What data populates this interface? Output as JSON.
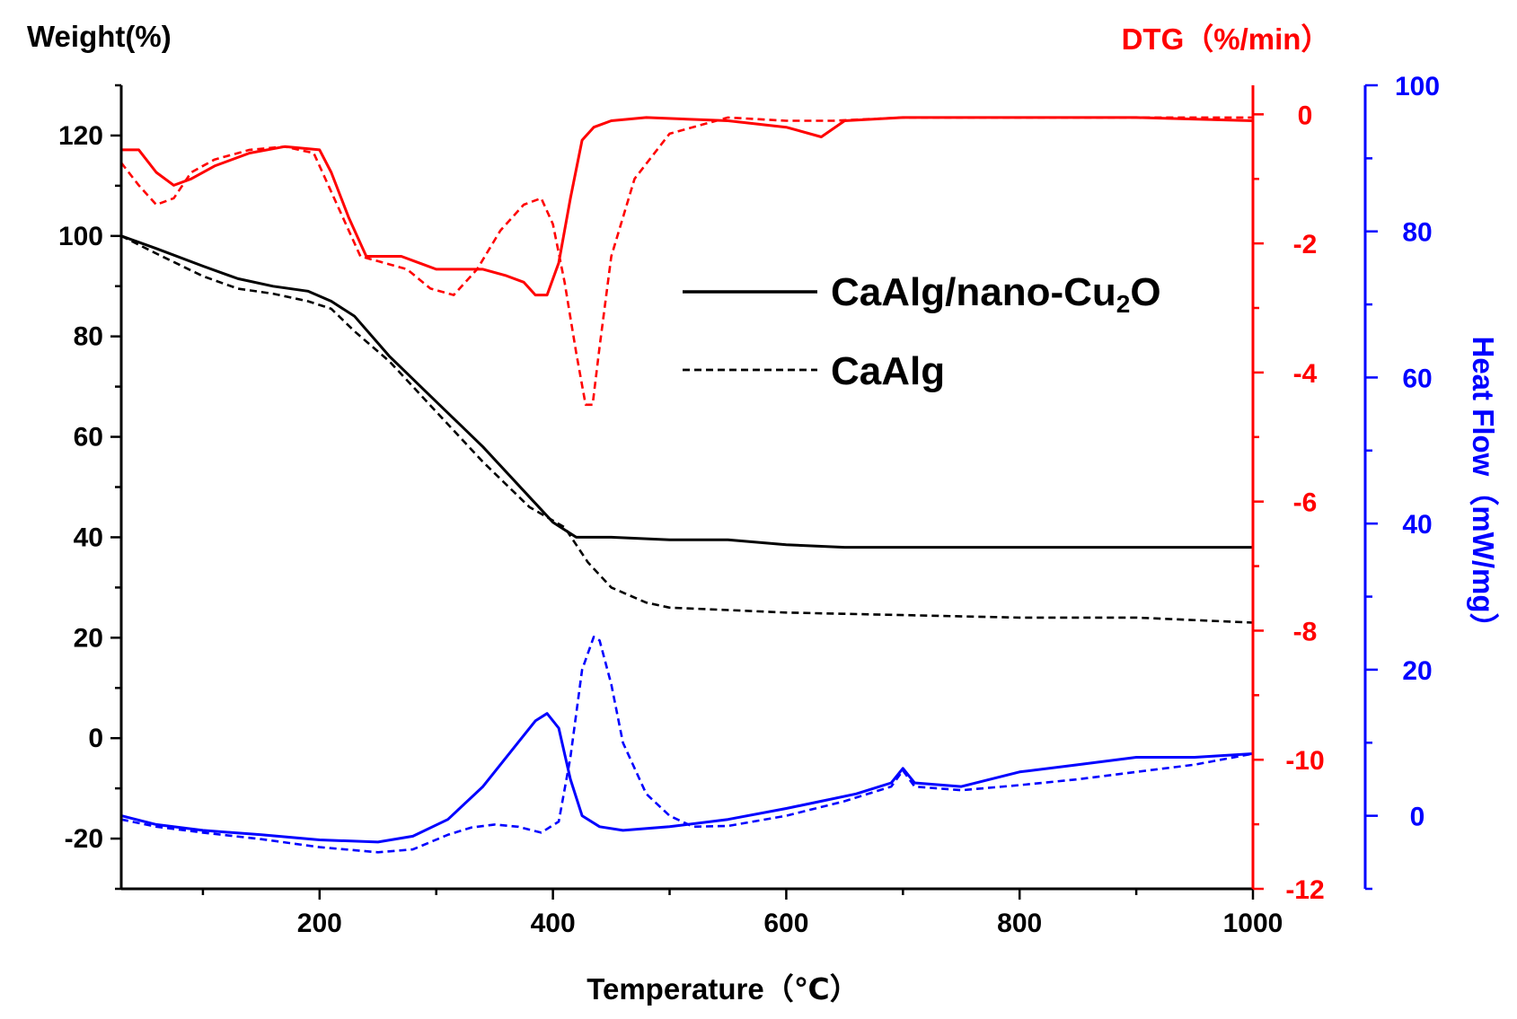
{
  "chart_data": {
    "type": "line",
    "title": "",
    "xlabel": "Temperature（℃）",
    "xlim": [
      30,
      1000
    ],
    "x_ticks": [
      200,
      400,
      600,
      800,
      1000
    ],
    "axes": {
      "weight": {
        "label": "Weight(%)",
        "ylim": [
          -30,
          130
        ],
        "ticks": [
          -20,
          0,
          20,
          40,
          60,
          80,
          100,
          120
        ],
        "color": "#000000"
      },
      "dtg": {
        "label": "DTG（%/min）",
        "ylim": [
          -12,
          0.45
        ],
        "ticks": [
          0,
          -2,
          -4,
          -6,
          -8,
          -10,
          -12
        ],
        "color": "#ff0000"
      },
      "heat": {
        "label": "Heat Flow（mW/mg）",
        "ylim": [
          -10,
          100
        ],
        "ticks": [
          0,
          20,
          40,
          60,
          80,
          100
        ],
        "color": "#0000ff"
      }
    },
    "legend": [
      {
        "label": "CaAlg/nano-Cu",
        "sub": "2",
        "suffix": "O",
        "style": "solid"
      },
      {
        "label": "CaAlg",
        "style": "dashed"
      }
    ],
    "series": [
      {
        "name": "CaAlg/nano-Cu2O weight",
        "axis": "weight",
        "style": "solid",
        "color": "#000000",
        "x": [
          30,
          60,
          100,
          130,
          160,
          190,
          210,
          230,
          260,
          300,
          340,
          380,
          400,
          420,
          450,
          500,
          550,
          600,
          650,
          700,
          800,
          900,
          1000
        ],
        "y": [
          100,
          97.5,
          94,
          91.5,
          90,
          89,
          87,
          84,
          76,
          67,
          58,
          48,
          43,
          40,
          40,
          39.5,
          39.5,
          38.5,
          38,
          38,
          38,
          38,
          38
        ]
      },
      {
        "name": "CaAlg weight",
        "axis": "weight",
        "style": "dashed",
        "color": "#000000",
        "x": [
          30,
          60,
          100,
          130,
          160,
          190,
          210,
          230,
          260,
          300,
          340,
          380,
          410,
          430,
          450,
          480,
          500,
          550,
          600,
          700,
          800,
          900,
          1000
        ],
        "y": [
          100,
          96.5,
          92,
          89.5,
          88.5,
          87,
          85.5,
          81,
          75,
          65,
          55,
          46,
          42,
          35,
          30,
          27,
          26,
          25.5,
          25,
          24.5,
          24,
          24,
          23
        ]
      },
      {
        "name": "CaAlg/nano-Cu2O DTG",
        "axis": "dtg",
        "style": "solid",
        "color": "#ff0000",
        "x": [
          30,
          45,
          60,
          75,
          90,
          110,
          140,
          170,
          200,
          210,
          225,
          240,
          255,
          270,
          285,
          300,
          320,
          340,
          360,
          375,
          385,
          395,
          405,
          415,
          425,
          435,
          450,
          480,
          550,
          600,
          630,
          650,
          700,
          800,
          900,
          1000
        ],
        "y": [
          -0.55,
          -0.55,
          -0.9,
          -1.1,
          -1.0,
          -0.8,
          -0.6,
          -0.5,
          -0.55,
          -0.9,
          -1.6,
          -2.2,
          -2.2,
          -2.2,
          -2.3,
          -2.4,
          -2.4,
          -2.4,
          -2.5,
          -2.6,
          -2.8,
          -2.8,
          -2.3,
          -1.3,
          -0.4,
          -0.2,
          -0.1,
          -0.05,
          -0.1,
          -0.2,
          -0.35,
          -0.1,
          -0.05,
          -0.05,
          -0.05,
          -0.1
        ]
      },
      {
        "name": "CaAlg DTG",
        "axis": "dtg",
        "style": "dashed",
        "color": "#ff0000",
        "x": [
          30,
          45,
          60,
          75,
          90,
          110,
          140,
          170,
          195,
          215,
          235,
          255,
          275,
          295,
          315,
          335,
          355,
          375,
          390,
          400,
          410,
          420,
          428,
          434,
          440,
          450,
          470,
          500,
          550,
          600,
          640,
          700,
          800,
          900,
          1000
        ],
        "y": [
          -0.75,
          -1.1,
          -1.4,
          -1.3,
          -0.9,
          -0.7,
          -0.55,
          -0.5,
          -0.6,
          -1.4,
          -2.2,
          -2.3,
          -2.4,
          -2.7,
          -2.8,
          -2.4,
          -1.8,
          -1.4,
          -1.3,
          -1.7,
          -2.6,
          -3.7,
          -4.5,
          -4.5,
          -3.6,
          -2.2,
          -1.0,
          -0.3,
          -0.05,
          -0.1,
          -0.1,
          -0.05,
          -0.05,
          -0.05,
          -0.05
        ]
      },
      {
        "name": "CaAlg/nano-Cu2O heat flow",
        "axis": "heat",
        "style": "solid",
        "color": "#0000ff",
        "x": [
          30,
          60,
          100,
          150,
          200,
          250,
          280,
          310,
          340,
          370,
          385,
          395,
          405,
          415,
          425,
          440,
          460,
          500,
          550,
          600,
          630,
          660,
          690,
          700,
          710,
          750,
          800,
          850,
          900,
          950,
          1000
        ],
        "y": [
          0,
          -1.2,
          -2,
          -2.6,
          -3.3,
          -3.6,
          -2.8,
          -0.5,
          4,
          10,
          13,
          14,
          12,
          5,
          0,
          -1.5,
          -2,
          -1.5,
          -0.5,
          1,
          2,
          3,
          4.5,
          6.5,
          4.5,
          4,
          6,
          7,
          8,
          8,
          8.5
        ]
      },
      {
        "name": "CaAlg heat flow",
        "axis": "heat",
        "style": "dashed",
        "color": "#0000ff",
        "x": [
          30,
          60,
          100,
          150,
          200,
          250,
          280,
          310,
          330,
          350,
          370,
          390,
          405,
          415,
          425,
          435,
          440,
          450,
          460,
          480,
          500,
          520,
          550,
          600,
          650,
          690,
          700,
          710,
          750,
          800,
          850,
          900,
          950,
          1000
        ],
        "y": [
          -0.5,
          -1.5,
          -2.3,
          -3.2,
          -4.3,
          -5,
          -4.6,
          -2.6,
          -1.6,
          -1.2,
          -1.5,
          -2.3,
          -0.8,
          8,
          20,
          24.5,
          24,
          18,
          10,
          3,
          0,
          -1.5,
          -1.4,
          0,
          2,
          4,
          6.2,
          4,
          3.5,
          4.2,
          5,
          6,
          7,
          8.5
        ]
      }
    ]
  }
}
